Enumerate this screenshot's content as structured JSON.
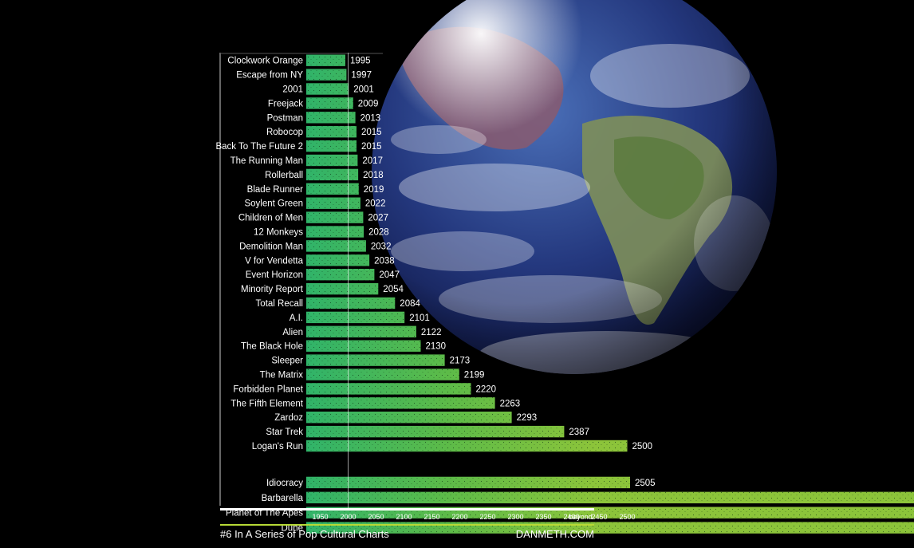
{
  "chart_data": {
    "type": "bar",
    "orientation": "horizontal",
    "title": "",
    "xlabel": "",
    "ylabel": "",
    "xlim": [
      1925,
      2565
    ],
    "categories": [
      "Clockwork Orange",
      "Escape from NY",
      "2001",
      "Freejack",
      "Postman",
      "Robocop",
      "Back To The Future 2",
      "The Running Man",
      "Rollerball",
      "Blade Runner",
      "Soylent Green",
      "Children of Men",
      "12 Monkeys",
      "Demolition Man",
      "V for Vendetta",
      "Event Horizon",
      "Minority Report",
      "Total Recall",
      "A.I.",
      "Alien",
      "The Black Hole",
      "Sleeper",
      "The Matrix",
      "Forbidden Planet",
      "The Fifth Element",
      "Zardoz",
      "Star Trek",
      "Logan's Run",
      "Idiocracy",
      "Barbarella",
      "Planet of The Apes",
      "Dune"
    ],
    "values": [
      1995,
      1997,
      2001,
      2009,
      2013,
      2015,
      2015,
      2017,
      2018,
      2019,
      2022,
      2027,
      2028,
      2032,
      2038,
      2047,
      2054,
      2084,
      2101,
      2122,
      2130,
      2173,
      2199,
      2220,
      2263,
      2293,
      2387,
      2500,
      2505,
      null,
      null,
      null
    ],
    "value_labels": [
      "1995",
      "1997",
      "2001",
      "2009",
      "2013",
      "2015",
      "2015",
      "2017",
      "2018",
      "2019",
      "2022",
      "2027",
      "2028",
      "2032",
      "2038",
      "2047",
      "2054",
      "2084",
      "2101",
      "2122",
      "2130",
      "2173",
      "2199",
      "2220",
      "2263",
      "2293",
      "2387",
      "2500",
      "2505",
      "",
      "",
      ""
    ],
    "beyond": [
      false,
      false,
      false,
      false,
      false,
      false,
      false,
      false,
      false,
      false,
      false,
      false,
      false,
      false,
      false,
      false,
      false,
      false,
      false,
      false,
      false,
      false,
      false,
      false,
      false,
      false,
      false,
      false,
      false,
      true,
      true,
      true
    ],
    "x_ticks": [
      "1950",
      "2000",
      "2050",
      "2100",
      "2150",
      "2200",
      "2250",
      "2300",
      "2350",
      "2400",
      "2450",
      "2500",
      "beyond"
    ],
    "grid": false,
    "legend": "none",
    "colors": {
      "low": "#2fb36a",
      "high": "#8cc43a",
      "axis": "#ffffff",
      "rule": "#b7d936"
    }
  },
  "footer": {
    "series_label": "#6 In A Series of Pop Cultural Charts",
    "site": "DANMETH.COM"
  }
}
